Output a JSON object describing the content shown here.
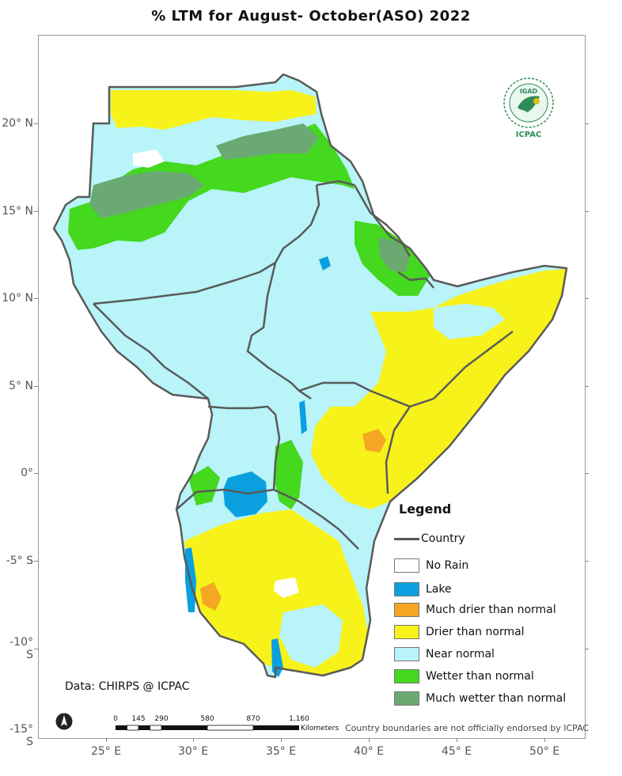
{
  "title": "% LTM for   August- October(ASO) 2022",
  "axes": {
    "lat_labels": [
      "20° N",
      "15° N",
      "10° N",
      "5° N",
      "0°",
      "-5° S",
      "-10° S",
      "-15° S"
    ],
    "lon_labels": [
      "25° E",
      "30° E",
      "35° E",
      "40° E",
      "45° E",
      "50° E"
    ]
  },
  "legend": {
    "title": "Legend",
    "items": [
      {
        "label": "Country",
        "kind": "line",
        "color": "#555555"
      },
      {
        "label": "No Rain",
        "kind": "box",
        "color": "#ffffff"
      },
      {
        "label": "Lake",
        "kind": "box",
        "color": "#0aa0e0"
      },
      {
        "label": "Much drier than normal",
        "kind": "box",
        "color": "#f5a623"
      },
      {
        "label": "Drier than normal",
        "kind": "box",
        "color": "#f7f21a"
      },
      {
        "label": "Near normal",
        "kind": "box",
        "color": "#b8f4f8"
      },
      {
        "label": "Wetter than normal",
        "kind": "box",
        "color": "#44d81e"
      },
      {
        "label": "Much wetter than normal",
        "kind": "box",
        "color": "#6aaa72"
      }
    ]
  },
  "source": "Data: CHIRPS @ ICPAC",
  "disclaimer": "Country boundaries are not officially endorsed by ICPAC",
  "scalebar": {
    "ticks": [
      "0",
      "145",
      "290",
      "580",
      "870",
      "1,160"
    ],
    "unit": "Kilometers"
  },
  "logo": {
    "top_text": "IGAD",
    "bottom_text": "ICPAC"
  },
  "colors": {
    "near_normal": "#b8f4f8",
    "drier": "#f7f21a",
    "much_drier": "#f5a623",
    "wetter": "#44d81e",
    "much_wetter": "#6aaa72",
    "lake": "#0aa0e0",
    "no_rain": "#ffffff",
    "border": "#5a5a5a"
  }
}
